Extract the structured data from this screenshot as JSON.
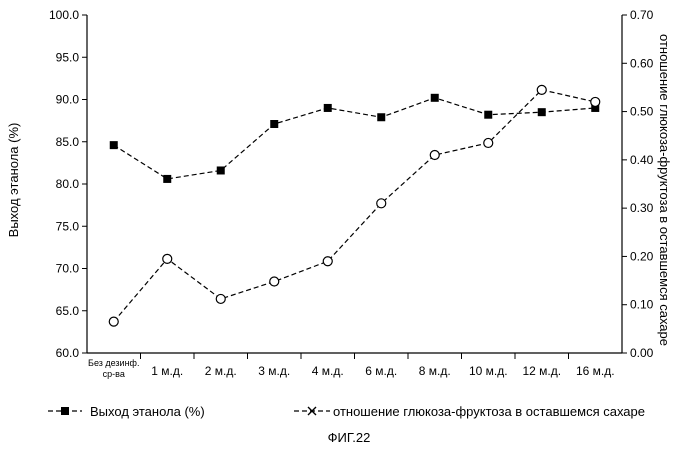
{
  "chart_data": {
    "type": "line",
    "categories": [
      [
        "Без дезинф.",
        "ср-ва"
      ],
      [
        "1 м.д."
      ],
      [
        "2 м.д."
      ],
      [
        "3 м.д."
      ],
      [
        "4 м.д."
      ],
      [
        "6 м.д."
      ],
      [
        "8 м.д."
      ],
      [
        "10 м.д."
      ],
      [
        "12 м.д."
      ],
      [
        "16 м.д."
      ]
    ],
    "ylabel": "Выход этанола (%)",
    "y2label": "отношение глюкоза-фруктоза в оставшемся сахаре",
    "ylim": [
      60.0,
      100.0
    ],
    "y2lim": [
      0.0,
      0.7
    ],
    "yticks": [
      "60.0",
      "65.0",
      "70.0",
      "75.0",
      "80.0",
      "85.0",
      "90.0",
      "95.0",
      "100.0"
    ],
    "y2ticks": [
      "0.00",
      "0.10",
      "0.20",
      "0.30",
      "0.40",
      "0.50",
      "0.60",
      "0.70"
    ],
    "series": [
      {
        "name": "Выход этанола (%)",
        "axis": "left",
        "marker": "square",
        "values": [
          84.6,
          80.6,
          81.6,
          87.1,
          89.0,
          87.9,
          90.2,
          88.2,
          88.5,
          89.0
        ]
      },
      {
        "name": "отношение глюкоза-фруктоза в оставшемся сахаре",
        "axis": "right",
        "marker": "circle",
        "legend_marker": "cross",
        "values": [
          0.065,
          0.195,
          0.112,
          0.148,
          0.19,
          0.31,
          0.41,
          0.435,
          0.545,
          0.52
        ]
      }
    ],
    "legend_position": "bottom",
    "grid": false
  },
  "figure_label": "ФИГ.22"
}
